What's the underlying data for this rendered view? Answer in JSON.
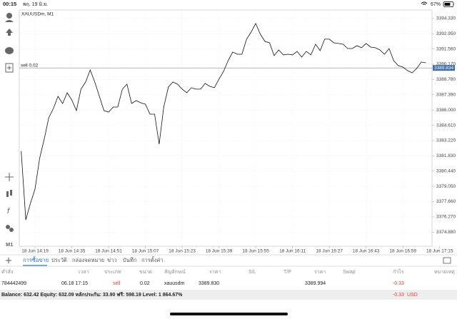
{
  "status_bar": {
    "time": "00:15",
    "date": "พฤ. 19 มิ.ย.",
    "battery": "67%"
  },
  "chart_data": {
    "type": "line",
    "title": "XAUUSDm, M1",
    "timeframe": "M1",
    "categories": [
      null,
      null,
      null,
      "18 Jun 14:19",
      null,
      null,
      null,
      null,
      null,
      null,
      null,
      "18 Jun 14:35",
      null,
      null,
      null,
      null,
      null,
      null,
      null,
      "18 Jun 14:51",
      null,
      null,
      null,
      null,
      null,
      null,
      null,
      "18 Jun 15:07",
      null,
      null,
      null,
      null,
      null,
      null,
      null,
      "18 Jun 15:23",
      null,
      null,
      null,
      null,
      null,
      null,
      null,
      "18 Jun 15:39",
      null,
      null,
      null,
      null,
      null,
      null,
      null,
      "18 Jun 15:55",
      null,
      null,
      null,
      null,
      null,
      null,
      null,
      "18 Jun 16:11",
      null,
      null,
      null,
      null,
      null,
      null,
      null,
      "18 Jun 16:27",
      null,
      null,
      null,
      null,
      null,
      null,
      null,
      "18 Jun 16:43",
      null,
      null,
      null,
      null,
      null,
      null,
      null,
      "18 Jun 16:59",
      null,
      null,
      null,
      null,
      null,
      null,
      null,
      "18 Jun 17:15"
    ],
    "values": [
      3382.24,
      3376.0,
      3377.5,
      3378.8,
      3381.59,
      3383.35,
      3385.3,
      3386.14,
      3387.25,
      3386.6,
      3387.57,
      3386.92,
      3385.95,
      3387.9,
      3388.55,
      3389.65,
      3388.55,
      3387.25,
      3385.95,
      3385.82,
      3386.27,
      3386.27,
      3387.9,
      3388.35,
      3386.6,
      3386.86,
      3386.66,
      3386.53,
      3385.62,
      3385.62,
      3382.89,
      3386.27,
      3388.09,
      3388.55,
      3388.35,
      3387.9,
      3387.57,
      3388.03,
      3387.9,
      3387.9,
      3388.42,
      3388.16,
      3388.03,
      3388.81,
      3389.52,
      3390.5,
      3391.28,
      3391.08,
      3391.08,
      3392.45,
      3393.1,
      3393.88,
      3392.9,
      3392.25,
      3392.12,
      3390.95,
      3391.47,
      3391.02,
      3391.08,
      3391.02,
      3391.34,
      3390.82,
      3391.34,
      3391.02,
      3391.99,
      3391.41,
      3392.45,
      3392.45,
      3392.12,
      3392.06,
      3391.99,
      3391.6,
      3391.6,
      3391.86,
      3391.67,
      3392.06,
      3391.73,
      3391.67,
      3391.47,
      3391.08,
      3391.6,
      3390.5,
      3390.04,
      3389.91,
      3389.59,
      3389.39,
      3389.78,
      3390.37,
      3390.3,
      null,
      null,
      null
    ],
    "color": "#111111",
    "ylim": [
      3373.6,
      3395.11
    ],
    "yticks": [
      {
        "value": 3374.88,
        "label": "3374.880"
      },
      {
        "value": 3376.27,
        "label": "3376.270"
      },
      {
        "value": 3377.66,
        "label": "3377.660"
      },
      {
        "value": 3379.05,
        "label": "3379.050"
      },
      {
        "value": 3380.44,
        "label": "3380.440"
      },
      {
        "value": 3381.83,
        "label": "3381.830"
      },
      {
        "value": 3383.22,
        "label": "3383.220"
      },
      {
        "value": 3384.61,
        "label": "3384.610"
      },
      {
        "value": 3386.0,
        "label": "3386.000"
      },
      {
        "value": 3387.39,
        "label": "3387.390"
      },
      {
        "value": 3388.78,
        "label": "3388.780"
      },
      {
        "value": 3390.17,
        "label": "3390.170"
      },
      {
        "value": 3391.56,
        "label": "3391.560"
      },
      {
        "value": 3392.95,
        "label": "3392.950"
      },
      {
        "value": 3394.33,
        "label": "3394.330"
      }
    ],
    "grid": true,
    "order_line": {
      "label": "sell 0.02",
      "price": 3389.83,
      "color": "#9e9e9e"
    },
    "bid": 3389.834,
    "bid_color": "#3d6ea8"
  },
  "tabs": [
    "การซื้อขาย",
    "ประวัติ",
    "กล่องจดหมาย",
    "ข่าว",
    "บันทึก",
    "การตั้งค่า"
  ],
  "table": {
    "headers": [
      "คำสั่ง",
      "เวลา",
      "ประเภท",
      "ขนาด",
      "สัญลักษณ์",
      "ราคา",
      "S/L",
      "T/P",
      "ราคา",
      "Swap",
      "กำไร",
      "หมายเหตุ"
    ],
    "rows": [
      [
        "784442499",
        "06.18 17:15",
        "sell",
        "0.02",
        "xauusdm",
        "3389.830",
        "",
        "",
        "3389.994",
        "",
        "-0.33",
        ""
      ]
    ]
  },
  "balance": {
    "text": "Balance: 632.42 Equity: 632.09 หลักประกัน: 33.90 ฟรี: 598.19 Level: 1 864.67%",
    "profit": "-0.33",
    "currency": "USD"
  }
}
